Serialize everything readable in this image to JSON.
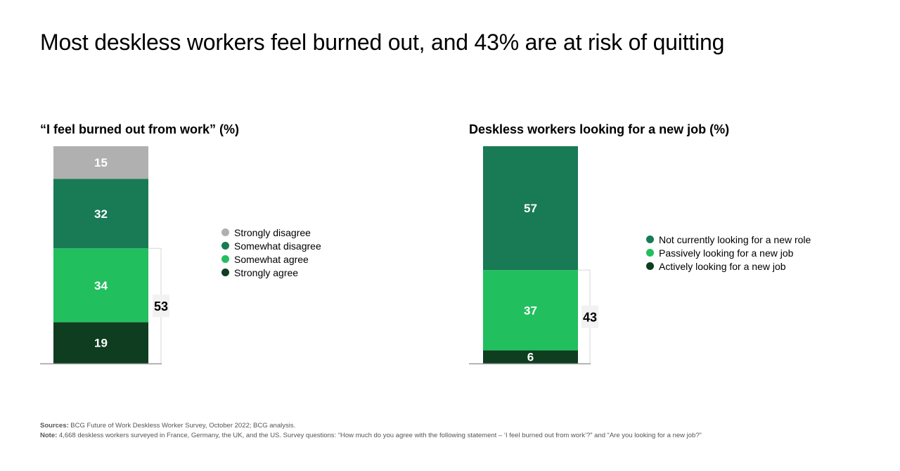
{
  "title": "Most deskless workers feel burned out, and 43% are at risk of quitting",
  "chart_data": [
    {
      "type": "bar",
      "stacked": true,
      "title": "“I feel burned out from work” (%)",
      "segments": [
        {
          "name": "Strongly agree",
          "value": 19,
          "color": "#0e3d1f"
        },
        {
          "name": "Somewhat agree",
          "value": 34,
          "color": "#22bf5f"
        },
        {
          "name": "Somewhat disagree",
          "value": 32,
          "color": "#197a56"
        },
        {
          "name": "Strongly disagree",
          "value": 15,
          "color": "#b0b0b0"
        }
      ],
      "bracket": {
        "value": "53"
      },
      "legend": [
        "Strongly disagree",
        "Somewhat disagree",
        "Somewhat agree",
        "Strongly agree"
      ]
    },
    {
      "type": "bar",
      "stacked": true,
      "title": "Deskless workers looking for a new job (%)",
      "segments": [
        {
          "name": "Actively looking for a new job",
          "value": 6,
          "color": "#0e3d1f"
        },
        {
          "name": "Passively looking for a new job",
          "value": 37,
          "color": "#22bf5f"
        },
        {
          "name": "Not currently looking for a new role",
          "value": 57,
          "color": "#197a56"
        }
      ],
      "bracket": {
        "value": "43"
      },
      "legend": [
        "Not currently looking for a new role",
        "Passively looking for a new job",
        "Actively looking for a new job"
      ]
    }
  ],
  "footer": {
    "sources_label": "Sources:",
    "sources_text": " BCG Future of Work Deskless Worker Survey, October 2022; BCG analysis.",
    "note_label": "Note:",
    "note_text": " 4,668 deskless workers surveyed in France, Germany, the UK, and the US. Survey questions: “How much do you agree with the following statement – ‘I feel burned out from work’?” and “Are you looking for a new job?”"
  }
}
